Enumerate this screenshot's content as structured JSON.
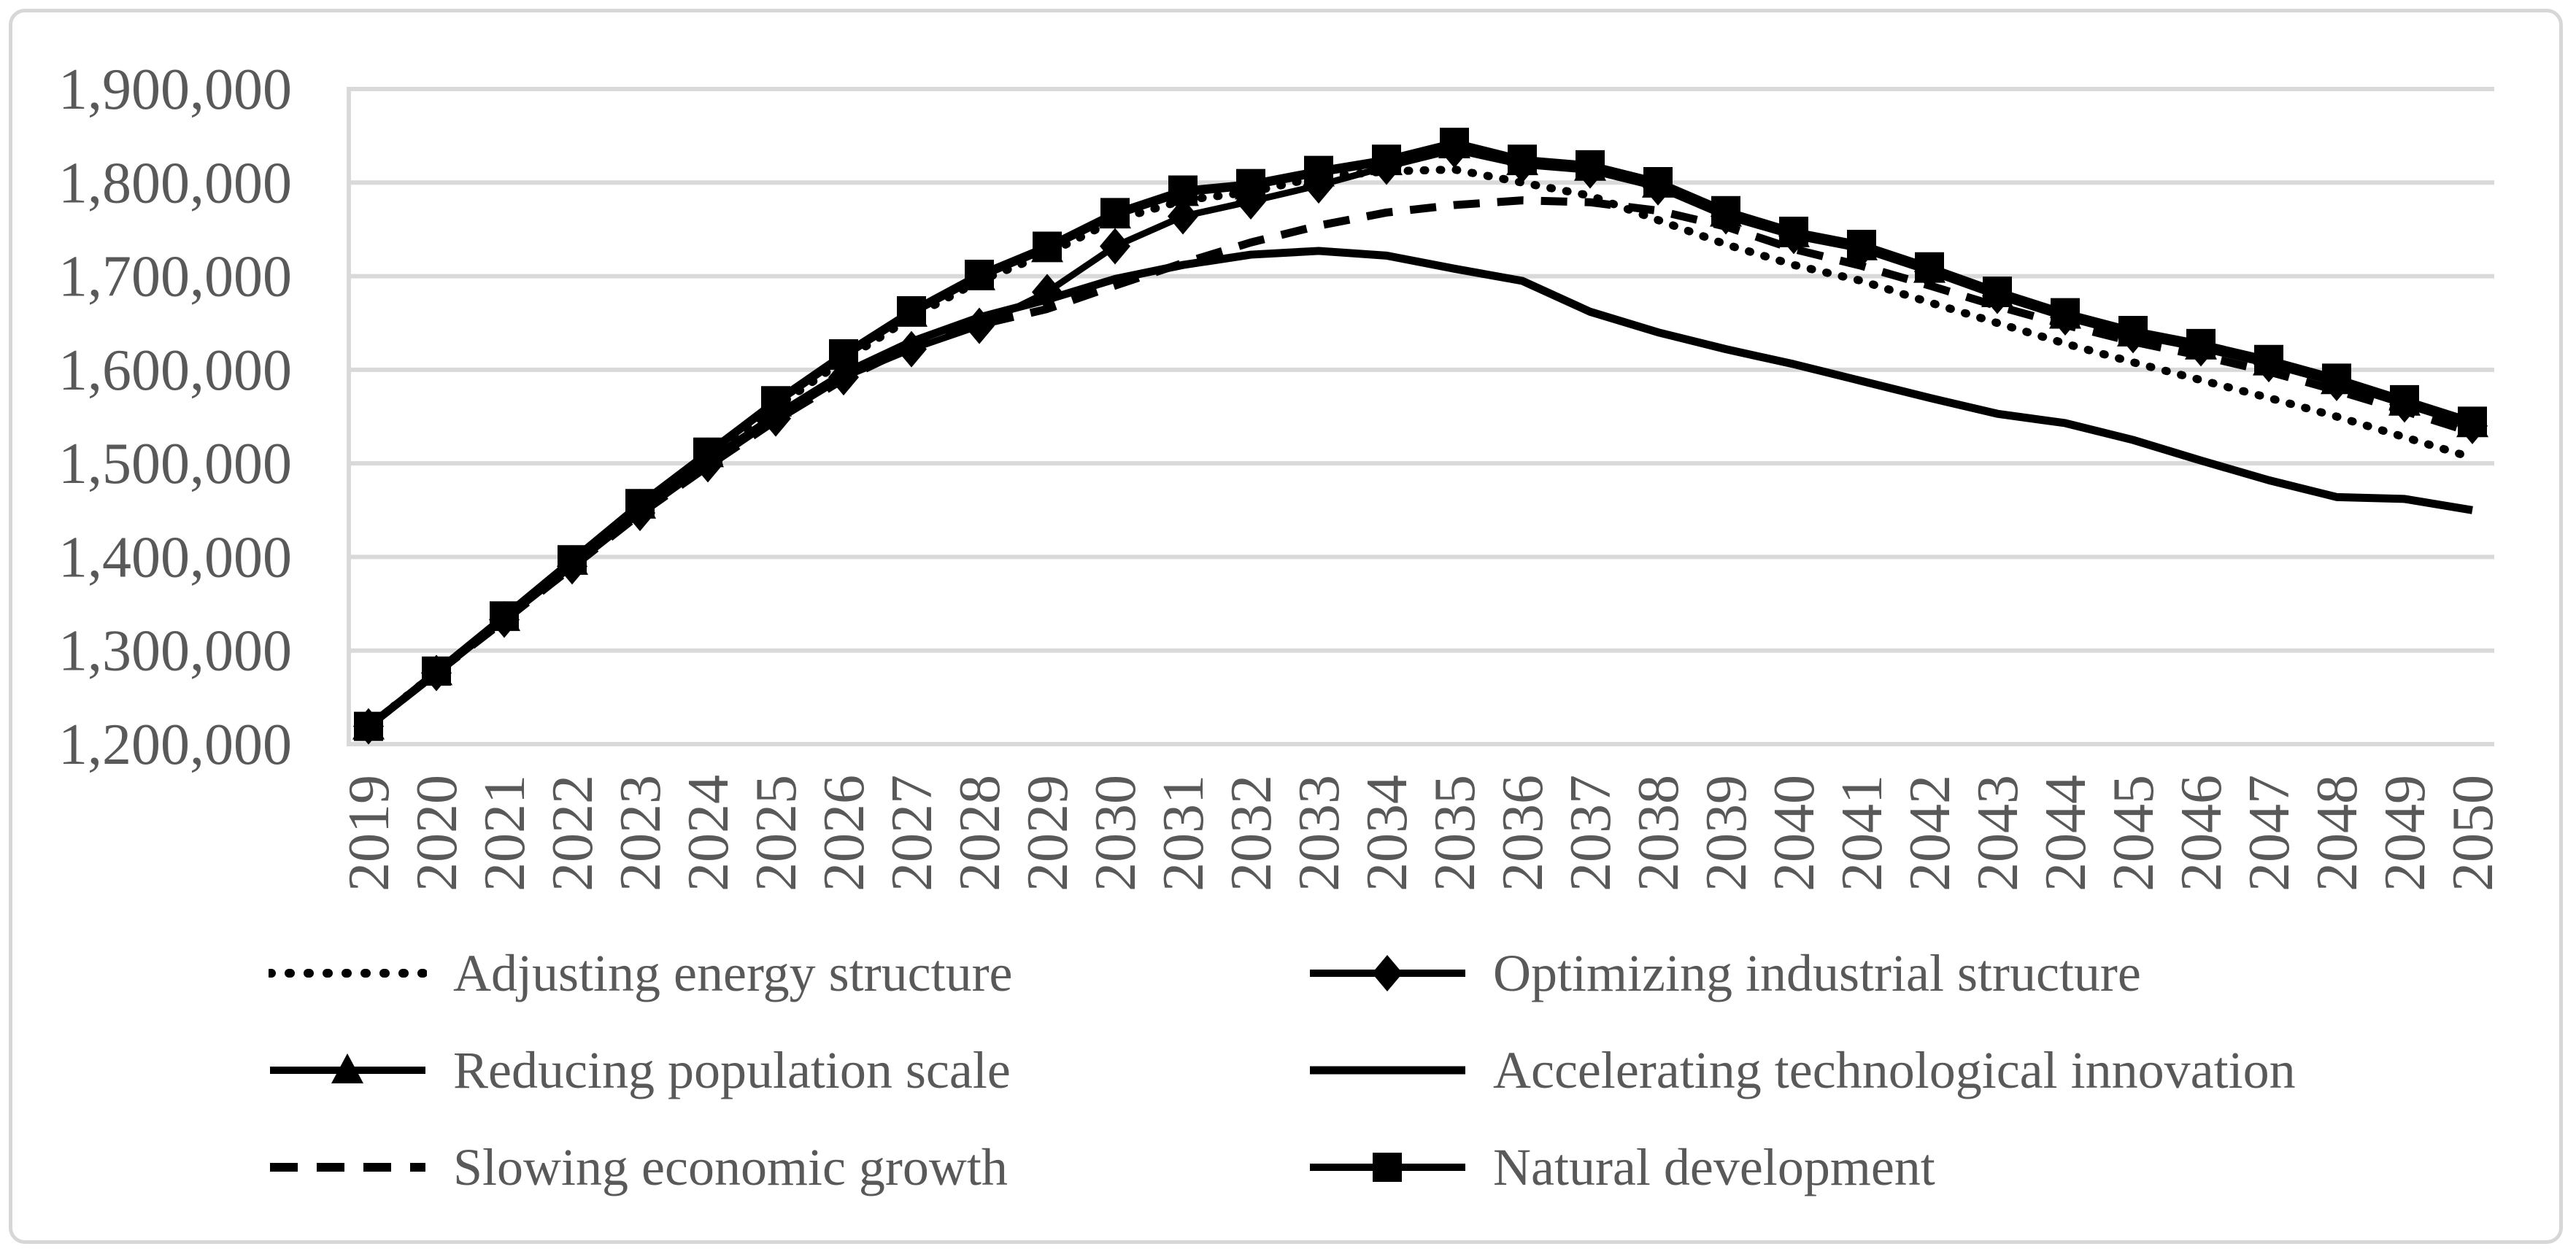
{
  "figure": {
    "background": "#ffffff",
    "frame_border_color": "#d7d7d7"
  },
  "colors": {
    "gridline": "#d9d9d9",
    "axis_line": "#d9d9d9",
    "tick_text": "#595959",
    "legend_text": "#595959",
    "series_stroke": "#000000"
  },
  "chart_data": {
    "type": "line",
    "title": "",
    "xlabel": "",
    "ylabel": "",
    "grid": true,
    "legend_position": "bottom",
    "legend_columns": 2,
    "x": [
      2019,
      2020,
      2021,
      2022,
      2023,
      2024,
      2025,
      2026,
      2027,
      2028,
      2029,
      2030,
      2031,
      2032,
      2033,
      2034,
      2035,
      2036,
      2037,
      2038,
      2039,
      2040,
      2041,
      2042,
      2043,
      2044,
      2045,
      2046,
      2047,
      2048,
      2049,
      2050
    ],
    "x_tick_labels": [
      "2019",
      "2020",
      "2021",
      "2022",
      "2023",
      "2024",
      "2025",
      "2026",
      "2027",
      "2028",
      "2029",
      "2030",
      "2031",
      "2032",
      "2033",
      "2034",
      "2035",
      "2036",
      "2037",
      "2038",
      "2039",
      "2040",
      "2041",
      "2042",
      "2043",
      "2044",
      "2045",
      "2046",
      "2047",
      "2048",
      "2049",
      "2050"
    ],
    "y_axis": {
      "min": 1200000,
      "max": 1900000,
      "tick_step": 100000,
      "tick_values": [
        1200000,
        1300000,
        1400000,
        1500000,
        1600000,
        1700000,
        1800000,
        1900000
      ],
      "tick_labels": [
        "1,200,000",
        "1,300,000",
        "1,400,000",
        "1,500,000",
        "1,600,000",
        "1,700,000",
        "1,800,000",
        "1,900,000"
      ]
    },
    "draw_order": [
      4,
      3,
      0,
      1,
      2,
      5
    ],
    "series": [
      {
        "name": "Adjusting energy structure",
        "line": "dotted",
        "marker": "none",
        "color": "#000000",
        "values": [
          1219000,
          1277000,
          1334000,
          1393000,
          1452000,
          1506000,
          1560000,
          1610000,
          1656000,
          1695000,
          1724000,
          1760000,
          1781000,
          1790000,
          1806000,
          1812000,
          1814000,
          1800000,
          1786000,
          1760000,
          1734000,
          1712000,
          1695000,
          1672000,
          1650000,
          1628000,
          1608000,
          1589000,
          1570000,
          1550000,
          1528000,
          1506000
        ]
      },
      {
        "name": "Optimizing industrial structure",
        "line": "solid",
        "marker": "diamond",
        "color": "#000000",
        "values": [
          1219000,
          1276000,
          1333000,
          1390000,
          1447000,
          1499000,
          1548000,
          1592000,
          1622000,
          1647000,
          1683000,
          1732000,
          1764000,
          1780000,
          1797000,
          1817000,
          1835000,
          1819000,
          1813000,
          1795000,
          1764000,
          1743000,
          1729000,
          1705000,
          1679000,
          1656000,
          1637000,
          1623000,
          1606000,
          1586000,
          1563000,
          1540000
        ]
      },
      {
        "name": "Reducing population scale",
        "line": "solid",
        "marker": "triangle",
        "color": "#000000",
        "values": [
          1219000,
          1277000,
          1335000,
          1395000,
          1455000,
          1510000,
          1564000,
          1614000,
          1660000,
          1699000,
          1729000,
          1765000,
          1789000,
          1796000,
          1810000,
          1822000,
          1840000,
          1822000,
          1816000,
          1798000,
          1767000,
          1745000,
          1731000,
          1707000,
          1681000,
          1658000,
          1639000,
          1625000,
          1608000,
          1588000,
          1565000,
          1542000
        ]
      },
      {
        "name": "Accelerating technological innovation",
        "line": "solid",
        "marker": "none",
        "color": "#000000",
        "values": [
          1219000,
          1276000,
          1334000,
          1392000,
          1450000,
          1502000,
          1551000,
          1596000,
          1630000,
          1656000,
          1675000,
          1697000,
          1712000,
          1723000,
          1727000,
          1722000,
          1708000,
          1695000,
          1662000,
          1640000,
          1622000,
          1606000,
          1588000,
          1570000,
          1553000,
          1543000,
          1525000,
          1503000,
          1482000,
          1464000,
          1462000,
          1450000
        ]
      },
      {
        "name": "Slowing economic growth",
        "line": "dashed",
        "marker": "none",
        "color": "#000000",
        "values": [
          1219000,
          1276000,
          1332000,
          1389000,
          1446000,
          1497000,
          1546000,
          1590000,
          1625000,
          1648000,
          1665000,
          1690000,
          1714000,
          1736000,
          1754000,
          1768000,
          1776000,
          1781000,
          1779000,
          1770000,
          1753000,
          1729000,
          1711000,
          1690000,
          1668000,
          1648000,
          1630000,
          1615000,
          1598000,
          1578000,
          1556000,
          1533000
        ]
      },
      {
        "name": "Natural development",
        "line": "solid",
        "marker": "square",
        "color": "#000000",
        "values": [
          1219000,
          1278000,
          1337000,
          1397000,
          1457000,
          1512000,
          1567000,
          1617000,
          1663000,
          1702000,
          1732000,
          1768000,
          1792000,
          1799000,
          1813000,
          1825000,
          1843000,
          1825000,
          1819000,
          1801000,
          1770000,
          1748000,
          1734000,
          1710000,
          1684000,
          1661000,
          1642000,
          1628000,
          1611000,
          1591000,
          1568000,
          1545000
        ]
      }
    ]
  }
}
